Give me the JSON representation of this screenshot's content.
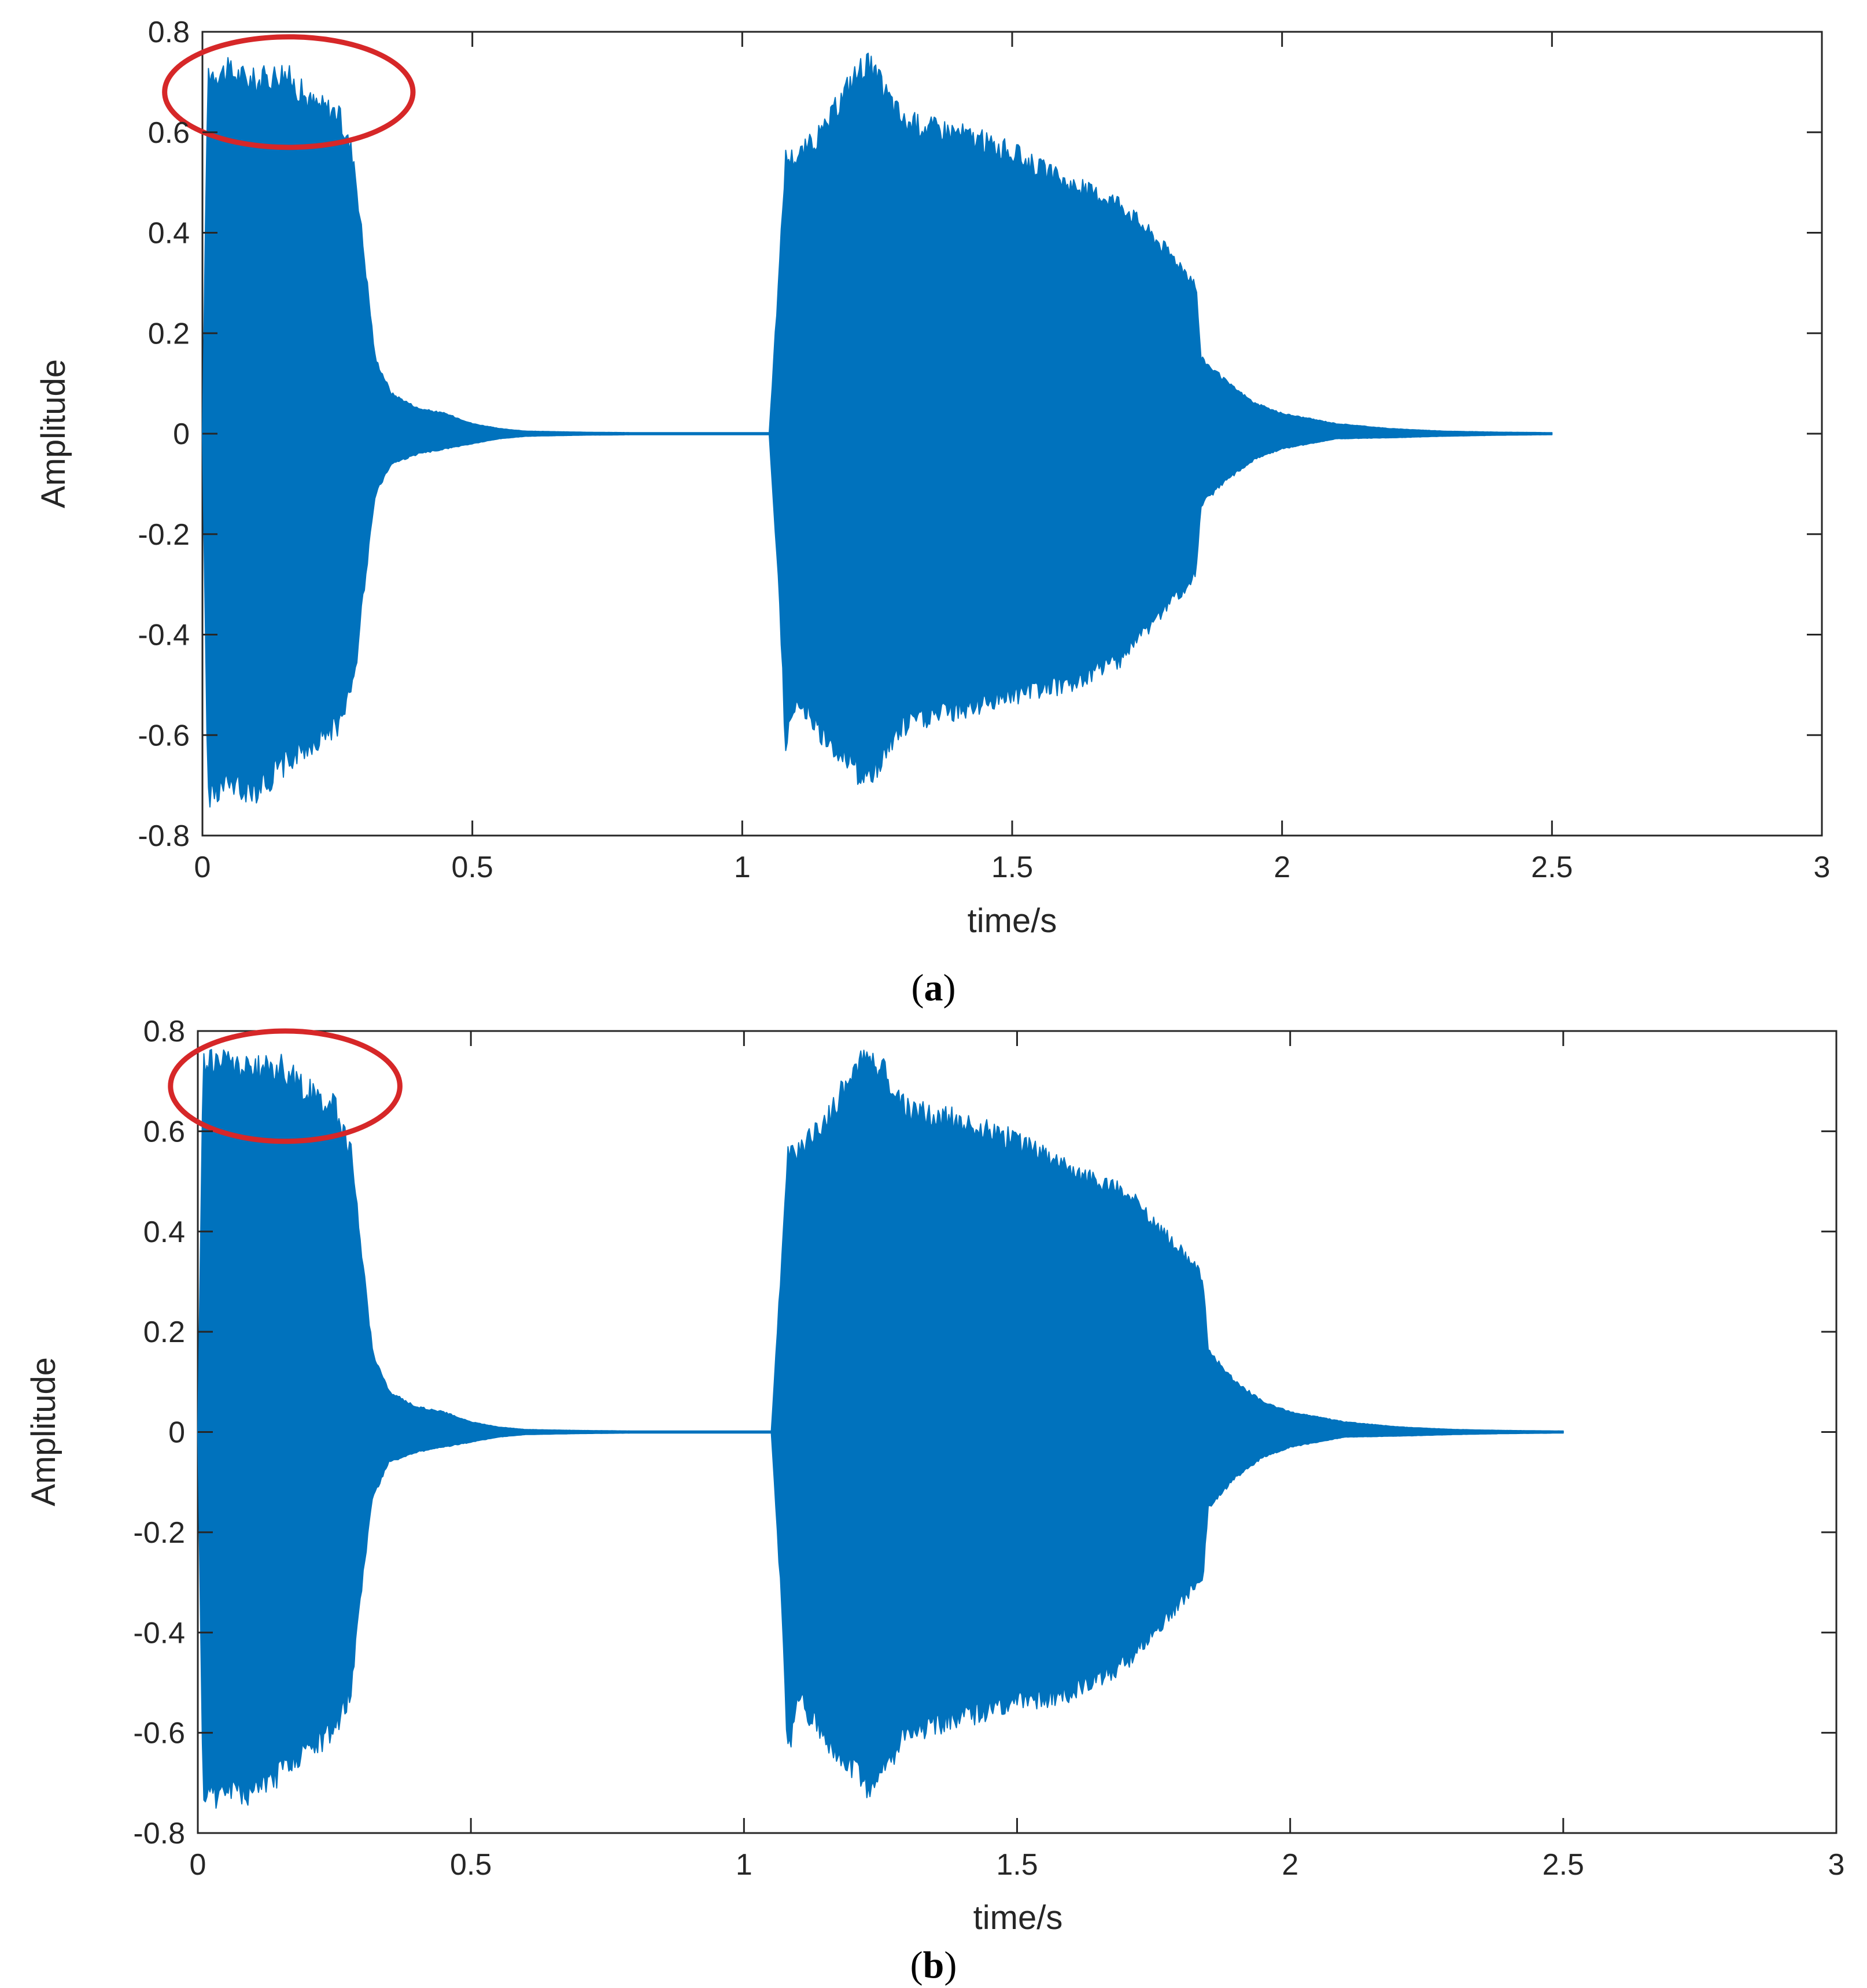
{
  "colors": {
    "signal": "#0072BD",
    "highlight": "#D62728",
    "axis": "#262626",
    "background": "#FFFFFF"
  },
  "panels": [
    {
      "caption_prefix": "(",
      "caption_letter": "a",
      "caption_suffix": ")"
    },
    {
      "caption_prefix": "(",
      "caption_letter": "b",
      "caption_suffix": ")"
    }
  ],
  "chart_data": [
    {
      "type": "area",
      "xlabel": "time/s",
      "ylabel": "Amplitude",
      "xlim": [
        0,
        3
      ],
      "ylim": [
        -0.8,
        0.8
      ],
      "xticks": [
        0,
        0.5,
        1,
        1.5,
        2,
        2.5,
        3
      ],
      "xtick_labels": [
        "0",
        "0.5",
        "1",
        "1.5",
        "2",
        "2.5",
        "3"
      ],
      "yticks": [
        -0.8,
        -0.6,
        -0.4,
        -0.2,
        0,
        0.2,
        0.4,
        0.6,
        0.8
      ],
      "ytick_labels": [
        "-0.8",
        "-0.6",
        "-0.4",
        "-0.2",
        "0",
        "0.2",
        "0.4",
        "0.6",
        "0.8"
      ],
      "grid": false,
      "series": [
        {
          "envelope": {
            "t": [
              0,
              0.01,
              0.05,
              0.1,
              0.15,
              0.2,
              0.25,
              0.28,
              0.3,
              0.32,
              0.35,
              0.4,
              0.45,
              0.5,
              0.55,
              0.6,
              0.7,
              0.8,
              0.9,
              1.0,
              1.05,
              1.07,
              1.08,
              1.1,
              1.15,
              1.2,
              1.23,
              1.3,
              1.4,
              1.5,
              1.6,
              1.7,
              1.8,
              1.84,
              1.85,
              1.9,
              1.95,
              2.0,
              2.05,
              2.1,
              2.2,
              2.3,
              2.4,
              2.5
            ],
            "upper": [
              0.0,
              0.72,
              0.72,
              0.7,
              0.72,
              0.66,
              0.64,
              0.55,
              0.35,
              0.15,
              0.08,
              0.05,
              0.04,
              0.02,
              0.01,
              0.005,
              0.003,
              0.002,
              0.002,
              0.002,
              0.002,
              0.35,
              0.55,
              0.55,
              0.6,
              0.7,
              0.74,
              0.62,
              0.6,
              0.56,
              0.5,
              0.46,
              0.35,
              0.3,
              0.15,
              0.1,
              0.06,
              0.04,
              0.03,
              0.02,
              0.01,
              0.005,
              0.003,
              0.002
            ],
            "lower": [
              0.0,
              -0.72,
              -0.7,
              -0.71,
              -0.66,
              -0.62,
              -0.58,
              -0.5,
              -0.3,
              -0.12,
              -0.06,
              -0.04,
              -0.03,
              -0.02,
              -0.01,
              -0.005,
              -0.003,
              -0.002,
              -0.002,
              -0.002,
              -0.002,
              -0.35,
              -0.62,
              -0.52,
              -0.6,
              -0.65,
              -0.7,
              -0.58,
              -0.55,
              -0.52,
              -0.5,
              -0.45,
              -0.33,
              -0.28,
              -0.14,
              -0.09,
              -0.05,
              -0.03,
              -0.02,
              -0.01,
              -0.008,
              -0.005,
              -0.003,
              -0.002
            ]
          }
        }
      ],
      "annotations": [
        {
          "type": "ellipse",
          "cx": 0.16,
          "cy": 0.68,
          "rx": 0.23,
          "ry": 0.11
        }
      ]
    },
    {
      "type": "area",
      "xlabel": "time/s",
      "ylabel": "Amplitude",
      "xlim": [
        0,
        3
      ],
      "ylim": [
        -0.8,
        0.8
      ],
      "xticks": [
        0,
        0.5,
        1,
        1.5,
        2,
        2.5,
        3
      ],
      "xtick_labels": [
        "0",
        "0.5",
        "1",
        "1.5",
        "2",
        "2.5",
        "3"
      ],
      "yticks": [
        -0.8,
        -0.6,
        -0.4,
        -0.2,
        0,
        0.2,
        0.4,
        0.6,
        0.8
      ],
      "ytick_labels": [
        "-0.8",
        "-0.6",
        "-0.4",
        "-0.2",
        "0",
        "0.2",
        "0.4",
        "0.6",
        "0.8"
      ],
      "grid": false,
      "series": [
        {
          "envelope": {
            "t": [
              0,
              0.01,
              0.05,
              0.1,
              0.15,
              0.2,
              0.25,
              0.28,
              0.3,
              0.32,
              0.35,
              0.4,
              0.45,
              0.5,
              0.55,
              0.6,
              0.7,
              0.8,
              0.9,
              1.0,
              1.05,
              1.07,
              1.08,
              1.1,
              1.15,
              1.2,
              1.23,
              1.3,
              1.4,
              1.5,
              1.6,
              1.7,
              1.8,
              1.84,
              1.85,
              1.9,
              1.95,
              2.0,
              2.05,
              2.1,
              2.2,
              2.3,
              2.4,
              2.5
            ],
            "upper": [
              0.0,
              0.74,
              0.74,
              0.72,
              0.73,
              0.68,
              0.65,
              0.56,
              0.36,
              0.16,
              0.08,
              0.05,
              0.04,
              0.02,
              0.01,
              0.005,
              0.003,
              0.002,
              0.002,
              0.002,
              0.002,
              0.36,
              0.56,
              0.56,
              0.62,
              0.72,
              0.76,
              0.64,
              0.62,
              0.58,
              0.52,
              0.48,
              0.36,
              0.31,
              0.16,
              0.1,
              0.06,
              0.04,
              0.03,
              0.02,
              0.01,
              0.005,
              0.003,
              0.002
            ],
            "lower": [
              0.0,
              -0.74,
              -0.72,
              -0.72,
              -0.68,
              -0.63,
              -0.6,
              -0.52,
              -0.31,
              -0.13,
              -0.06,
              -0.04,
              -0.03,
              -0.02,
              -0.01,
              -0.005,
              -0.003,
              -0.002,
              -0.002,
              -0.002,
              -0.002,
              -0.36,
              -0.64,
              -0.53,
              -0.62,
              -0.67,
              -0.72,
              -0.6,
              -0.57,
              -0.54,
              -0.52,
              -0.46,
              -0.34,
              -0.29,
              -0.15,
              -0.09,
              -0.05,
              -0.03,
              -0.02,
              -0.01,
              -0.008,
              -0.005,
              -0.003,
              -0.002
            ]
          }
        }
      ],
      "annotations": [
        {
          "type": "ellipse",
          "cx": 0.16,
          "cy": 0.69,
          "rx": 0.21,
          "ry": 0.11
        }
      ]
    }
  ]
}
